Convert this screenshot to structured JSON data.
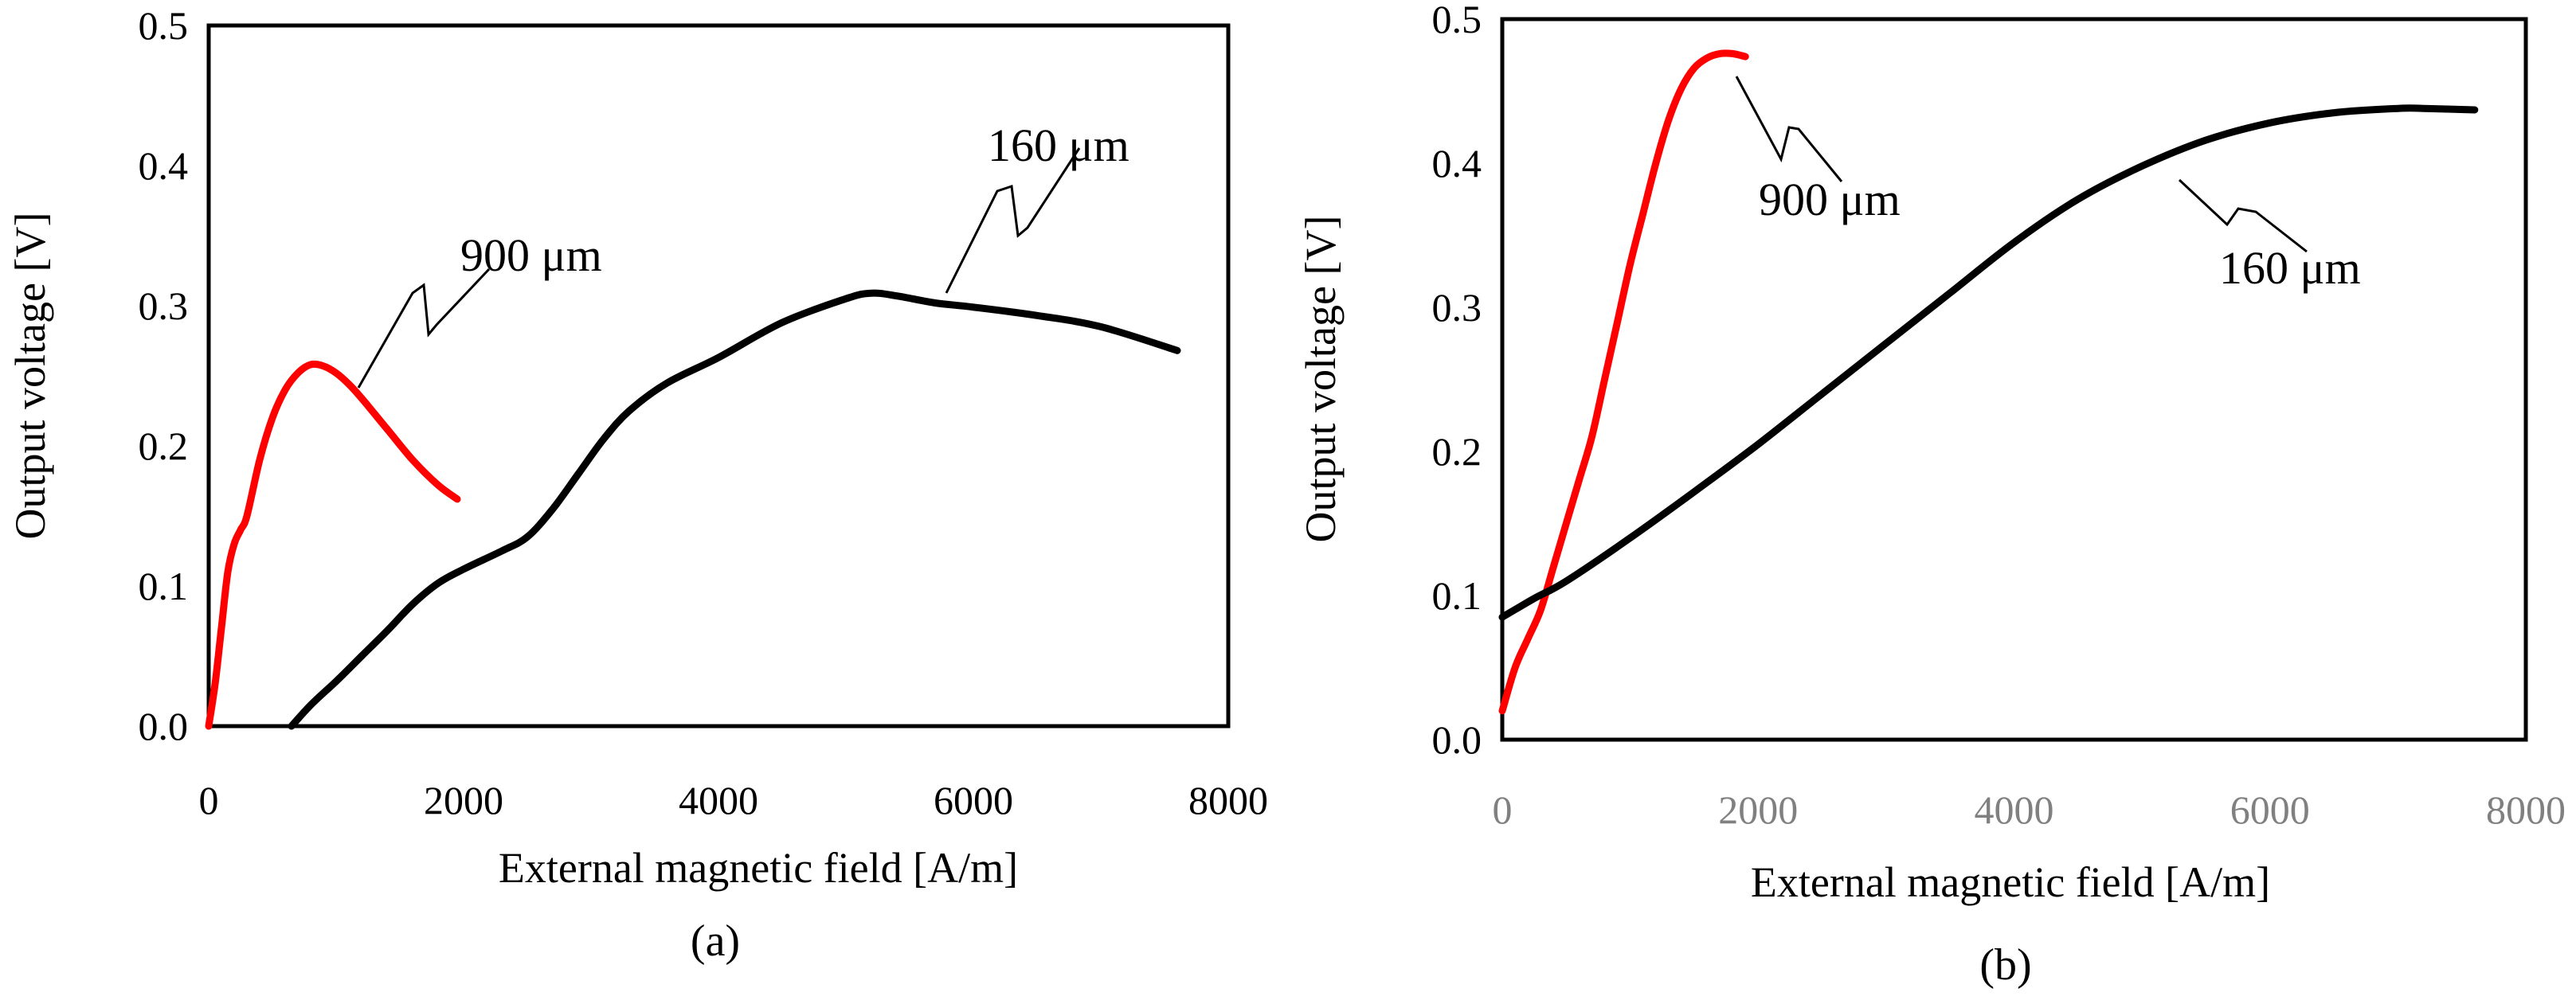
{
  "chart_data": [
    {
      "type": "line",
      "panel_label": "(a)",
      "xlabel": "External magnetic field [A/m]",
      "ylabel": "Output voltage [V]",
      "xlim": [
        0,
        8000
      ],
      "ylim": [
        0,
        0.5
      ],
      "xticks": [
        "0",
        "2000",
        "4000",
        "6000",
        "8000"
      ],
      "yticks": [
        "0.0",
        "0.1",
        "0.2",
        "0.3",
        "0.4",
        "0.5"
      ],
      "x_tick_color": "#000000",
      "series": [
        {
          "name": "900 μm",
          "color": "#ff0000",
          "x": [
            0,
            50,
            100,
            150,
            200,
            250,
            300,
            400,
            500,
            600,
            700,
            800,
            900,
            1000,
            1100,
            1200,
            1400,
            1600,
            1800,
            1950
          ],
          "y": [
            0.0,
            0.03,
            0.07,
            0.11,
            0.13,
            0.14,
            0.15,
            0.19,
            0.22,
            0.24,
            0.252,
            0.258,
            0.257,
            0.252,
            0.244,
            0.234,
            0.212,
            0.19,
            0.172,
            0.162
          ]
        },
        {
          "name": "160 μm",
          "color": "#000000",
          "x": [
            650,
            800,
            1000,
            1200,
            1400,
            1600,
            1800,
            2000,
            2300,
            2500,
            2700,
            2900,
            3100,
            3300,
            3600,
            4000,
            4500,
            5000,
            5200,
            5400,
            5700,
            6000,
            6500,
            7000,
            7600
          ],
          "y": [
            0.0,
            0.015,
            0.032,
            0.05,
            0.068,
            0.087,
            0.102,
            0.112,
            0.125,
            0.135,
            0.155,
            0.18,
            0.205,
            0.225,
            0.245,
            0.263,
            0.288,
            0.305,
            0.309,
            0.307,
            0.302,
            0.299,
            0.293,
            0.285,
            0.268
          ]
        }
      ],
      "annotations": [
        "900 μm",
        "160 μm"
      ]
    },
    {
      "type": "line",
      "panel_label": "(b)",
      "xlabel": "External magnetic field [A/m]",
      "ylabel": "Output voltage [V]",
      "xlim": [
        0,
        8000
      ],
      "ylim": [
        0,
        0.5
      ],
      "xticks": [
        "0",
        "2000",
        "4000",
        "6000",
        "8000"
      ],
      "yticks": [
        "0.0",
        "0.1",
        "0.2",
        "0.3",
        "0.4",
        "0.5"
      ],
      "x_tick_color": "#808080",
      "series": [
        {
          "name": "900 μm",
          "color": "#ff0000",
          "x": [
            0,
            100,
            200,
            300,
            400,
            500,
            600,
            700,
            800,
            900,
            1000,
            1100,
            1200,
            1300,
            1400,
            1500,
            1600,
            1700,
            1800,
            1900
          ],
          "y": [
            0.02,
            0.05,
            0.07,
            0.09,
            0.12,
            0.15,
            0.18,
            0.21,
            0.25,
            0.29,
            0.33,
            0.365,
            0.4,
            0.43,
            0.452,
            0.466,
            0.473,
            0.476,
            0.476,
            0.474
          ]
        },
        {
          "name": "160 μm",
          "color": "#000000",
          "x": [
            0,
            250,
            500,
            1000,
            1500,
            2000,
            2500,
            3000,
            3500,
            4000,
            4500,
            5000,
            5500,
            6000,
            6500,
            7000,
            7200,
            7600
          ],
          "y": [
            0.085,
            0.098,
            0.11,
            0.14,
            0.172,
            0.205,
            0.24,
            0.275,
            0.31,
            0.345,
            0.375,
            0.398,
            0.416,
            0.428,
            0.435,
            0.438,
            0.438,
            0.437
          ]
        }
      ],
      "annotations": [
        "900 μm",
        "160 μm"
      ]
    }
  ]
}
